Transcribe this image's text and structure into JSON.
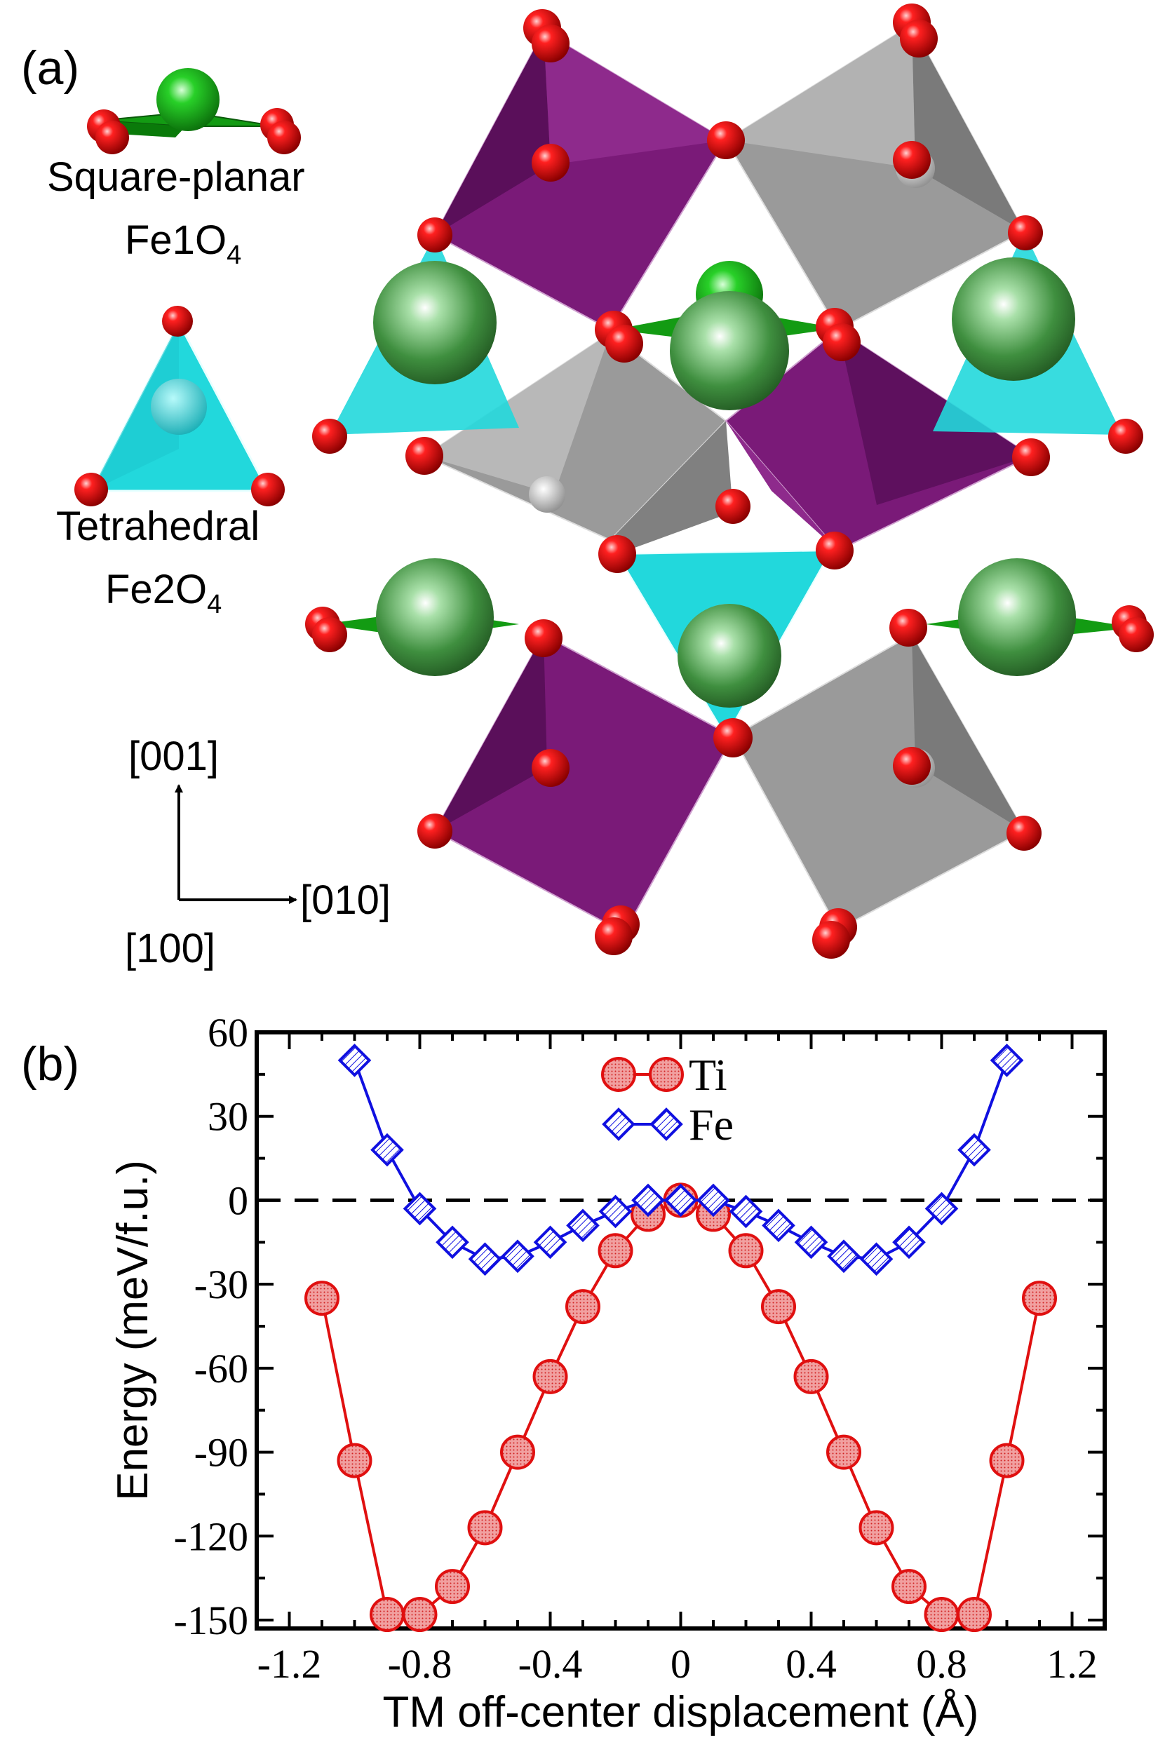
{
  "panel_a": {
    "label": "(a)",
    "square_planar": {
      "line1": "Square-planar",
      "formula": "Fe1O",
      "subscript": "4"
    },
    "tetrahedral": {
      "line1": "Tetrahedral",
      "formula": "Fe2O",
      "subscript": "4"
    },
    "axes": {
      "up": "[001]",
      "right": "[010]",
      "origin": "[100]"
    },
    "colors": {
      "oxygen": "#e00000",
      "cation_large": "#3f8f3f",
      "square_planar": "#14a014",
      "tetrahedral": "#22d8dc",
      "octahedron_purple": "#7a1a78",
      "octahedron_gray": "#9a9a9a"
    }
  },
  "panel_b": {
    "label": "(b)",
    "chart_data": {
      "type": "line",
      "xlabel": "TM off-center displacement (Å)",
      "ylabel": "Energy (meV/f.u.)",
      "xlim": [
        -1.3,
        1.3
      ],
      "ylim": [
        -153,
        60
      ],
      "xticks": [
        -1.2,
        -0.8,
        -0.4,
        0,
        0.4,
        0.8,
        1.2
      ],
      "xtick_labels": [
        "-1.2",
        "-0.8",
        "-0.4",
        "0",
        "0.4",
        "0.8",
        "1.2"
      ],
      "yticks": [
        60,
        30,
        0,
        -30,
        -60,
        -90,
        -120,
        -150
      ],
      "ytick_labels": [
        "60",
        "30",
        "0",
        "-30",
        "-60",
        "-90",
        "-120",
        "-150"
      ],
      "reference_line": {
        "y": 0,
        "style": "dashed"
      },
      "legend_position": "top-center",
      "series": [
        {
          "name": "Ti",
          "color": "#e01010",
          "marker": "circle",
          "x": [
            -1.1,
            -1.0,
            -0.9,
            -0.8,
            -0.7,
            -0.6,
            -0.5,
            -0.4,
            -0.3,
            -0.2,
            -0.1,
            0,
            0.1,
            0.2,
            0.3,
            0.4,
            0.5,
            0.6,
            0.7,
            0.8,
            0.9,
            1.0,
            1.1
          ],
          "y": [
            -35,
            -93,
            -148,
            -148,
            -138,
            -117,
            -90,
            -63,
            -38,
            -18,
            -5,
            0,
            -5,
            -18,
            -38,
            -63,
            -90,
            -117,
            -138,
            -148,
            -148,
            -93,
            -35
          ]
        },
        {
          "name": "Fe",
          "color": "#1010e0",
          "marker": "diamond",
          "x": [
            -1.0,
            -0.9,
            -0.8,
            -0.7,
            -0.6,
            -0.5,
            -0.4,
            -0.3,
            -0.2,
            -0.1,
            0,
            0.1,
            0.2,
            0.3,
            0.4,
            0.5,
            0.6,
            0.7,
            0.8,
            0.9,
            1.0
          ],
          "y": [
            50,
            18,
            -3,
            -15,
            -21,
            -20,
            -15,
            -9,
            -4,
            0,
            0,
            0,
            -4,
            -9,
            -15,
            -20,
            -21,
            -15,
            -3,
            18,
            50
          ]
        }
      ]
    }
  }
}
